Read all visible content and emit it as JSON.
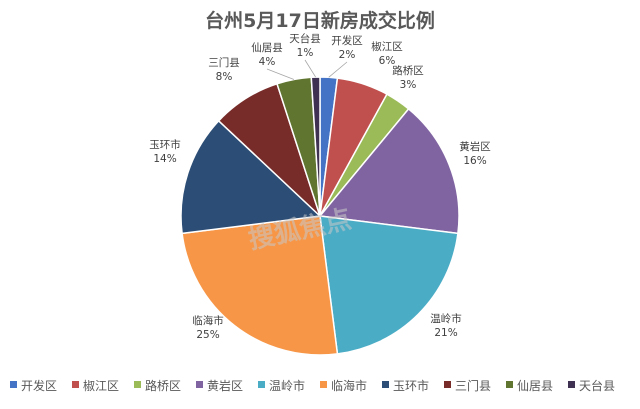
{
  "chart_data": {
    "type": "pie",
    "title": "台州5月17日新房成交比例",
    "series": [
      {
        "label": "开发区",
        "value": 2,
        "percent_label": "2%",
        "color": "#4472c4"
      },
      {
        "label": "椒江区",
        "value": 6,
        "percent_label": "6%",
        "color": "#c0504d"
      },
      {
        "label": "路桥区",
        "value": 3,
        "percent_label": "3%",
        "color": "#9bbb59"
      },
      {
        "label": "黄岩区",
        "value": 16,
        "percent_label": "16%",
        "color": "#8064a2"
      },
      {
        "label": "温岭市",
        "value": 21,
        "percent_label": "21%",
        "color": "#4bacc6"
      },
      {
        "label": "临海市",
        "value": 25,
        "percent_label": "25%",
        "color": "#f79646"
      },
      {
        "label": "玉环市",
        "value": 14,
        "percent_label": "14%",
        "color": "#2c4d75"
      },
      {
        "label": "三门县",
        "value": 8,
        "percent_label": "8%",
        "color": "#772c2a"
      },
      {
        "label": "仙居县",
        "value": 4,
        "percent_label": "4%",
        "color": "#5f7530"
      },
      {
        "label": "天台县",
        "value": 1,
        "percent_label": "1%",
        "color": "#3f3151"
      }
    ],
    "legend_position": "bottom",
    "start_angle": "12 o'clock, clockwise"
  },
  "watermark": {
    "text": "搜狐焦点"
  },
  "colors": {
    "background": "#ffffff",
    "slice_border": "#ffffff"
  }
}
